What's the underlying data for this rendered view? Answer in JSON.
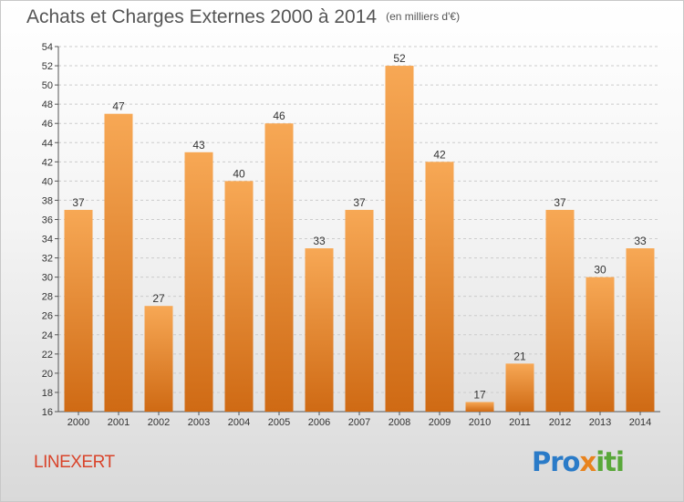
{
  "header": {
    "title": "Achats et Charges Externes 2000 à 2014",
    "unit": "(en milliers d'€)"
  },
  "footer": {
    "place": "LINEXERT",
    "brand_parts": [
      "Pro",
      "x",
      "iti"
    ]
  },
  "colors": {
    "bar_light": "#f7a855",
    "bar_dark": "#cf6a14",
    "grid": "#cccccc",
    "title": "#555555",
    "place": "#d9442b"
  },
  "chart_data": {
    "type": "bar",
    "title": "Achats et Charges Externes 2000 à 2014",
    "subtitle": "(en milliers d'€)",
    "xlabel": "",
    "ylabel": "",
    "categories": [
      "2000",
      "2001",
      "2002",
      "2003",
      "2004",
      "2005",
      "2006",
      "2007",
      "2008",
      "2009",
      "2010",
      "2011",
      "2012",
      "2013",
      "2014"
    ],
    "values": [
      37,
      47,
      27,
      43,
      40,
      46,
      33,
      37,
      52,
      42,
      17,
      21,
      37,
      30,
      33
    ],
    "ylim": [
      16,
      54
    ],
    "yticks": [
      16,
      18,
      20,
      22,
      24,
      26,
      28,
      30,
      32,
      34,
      36,
      38,
      40,
      42,
      44,
      46,
      48,
      50,
      52,
      54
    ],
    "grid": true,
    "legend": "none"
  }
}
